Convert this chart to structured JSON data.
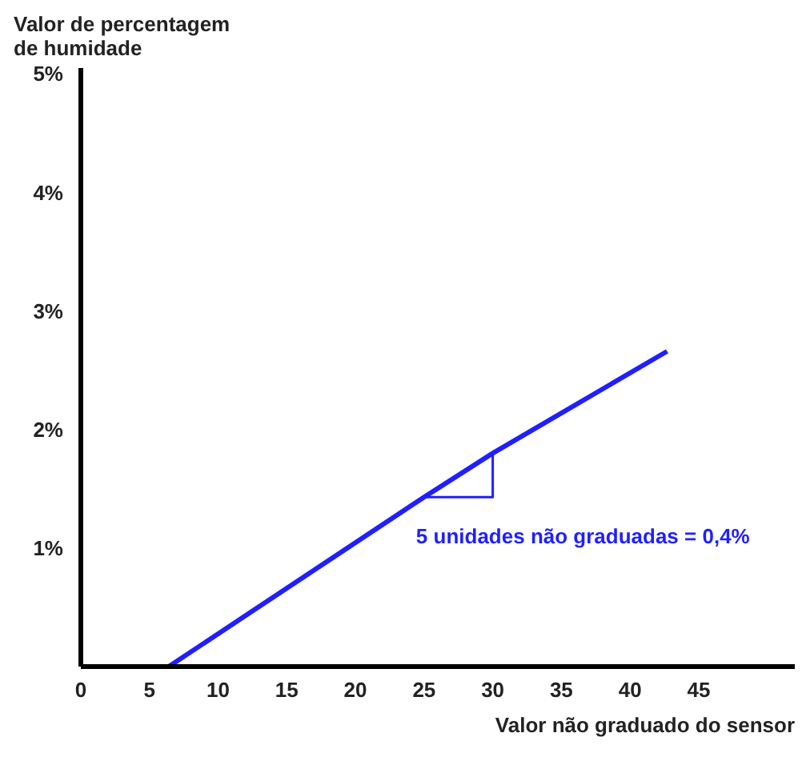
{
  "chart_data": {
    "type": "line",
    "ylabel": "Valor de percentagem\nde humidade",
    "xlabel": "Valor não graduado do sensor",
    "xlim": [
      0,
      52
    ],
    "ylim": [
      0,
      5.05
    ],
    "xticks": [
      0,
      5,
      10,
      15,
      20,
      25,
      30,
      35,
      40,
      45
    ],
    "yticks": [
      {
        "value": 1,
        "label": "1%"
      },
      {
        "value": 2,
        "label": "2%"
      },
      {
        "value": 3,
        "label": "3%"
      },
      {
        "value": 4,
        "label": "4%"
      },
      {
        "value": 5,
        "label": "5%"
      }
    ],
    "series": [
      {
        "color": "#1f1fff",
        "x": [
          6.4,
          25,
          30,
          42.7
        ],
        "values": [
          0,
          1.43,
          1.8,
          2.66
        ]
      },
      {
        "color": "#1f1fff",
        "x": [
          25,
          30,
          30
        ],
        "values": [
          1.43,
          1.43,
          1.8
        ]
      }
    ],
    "annotations": [
      "5 unidades não graduadas = 0,4%"
    ],
    "grid": false,
    "line_style": "solid",
    "marker": "none"
  }
}
